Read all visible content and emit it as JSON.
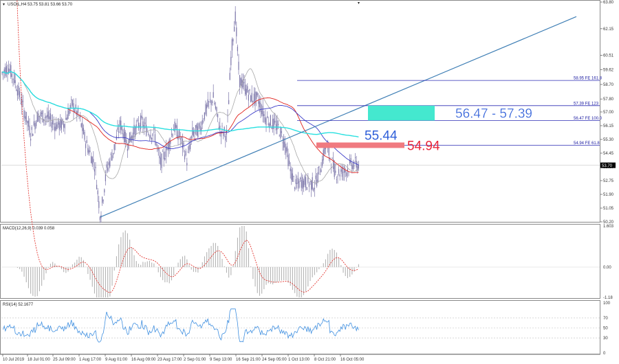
{
  "chart_data": [
    {
      "type": "candlestick",
      "symbol_header": "USOIL,H4  53.75 53.81 53.66 53.70",
      "price_axis": [
        "63.80",
        "62.15",
        "60.51",
        "59.62",
        "58.70",
        "57.80",
        "57.00",
        "56.15",
        "55.30",
        "54.45",
        "53.60",
        "52.75",
        "51.90",
        "51.05",
        "50.20"
      ],
      "ylim": [
        50.2,
        63.8
      ],
      "current_price": "53.70",
      "x_labels": [
        "10 Jul 2019",
        "18 Jul 01:00",
        "25 Jul 09:00",
        "1 Aug 17:00",
        "9 Aug 01:00",
        "16 Aug 09:00",
        "23 Aug 17:00",
        "2 Sep 01:00",
        "9 Sep 13:00",
        "16 Sep 21:00",
        "24 Sep 05:00",
        "1 Oct 13:00",
        "8 Oct 21:00",
        "16 Oct 05:00"
      ],
      "fib_levels": [
        {
          "value": 58.95,
          "label": "58.95  FE 161.8"
        },
        {
          "value": 57.39,
          "label": "57.39  FE 123"
        },
        {
          "value": 56.47,
          "label": "56.47  FE 100.0"
        },
        {
          "value": 54.94,
          "label": "54.94  FE 61.8"
        }
      ],
      "annotations": {
        "target_zone": "56.47 - 57.39",
        "level_blue": "55.44",
        "level_red": "54.94"
      },
      "colors": {
        "candles": "#7a74a8",
        "ma_red": "#e0201a",
        "ma_blue": "#3a3ac8",
        "ma_cyan": "#28e0e0",
        "ma_gray": "#a8a8a8",
        "trendline": "#3f7fb5",
        "zone": "#44e8cf",
        "redbox": "#f07a80",
        "label_blue": "#2f5fd9",
        "label_red": "#e8253a"
      }
    },
    {
      "type": "bar",
      "title": "MACD(12,26,9) 0.039 0.058",
      "axis": [
        "1.603",
        "0.00",
        "-1.18"
      ],
      "ylim": [
        -1.18,
        1.603
      ]
    },
    {
      "type": "line",
      "title": "RSI(14) 52.1677",
      "axis": [
        "100",
        "70",
        "50",
        "30",
        "0"
      ],
      "ylim": [
        0,
        100
      ]
    }
  ]
}
